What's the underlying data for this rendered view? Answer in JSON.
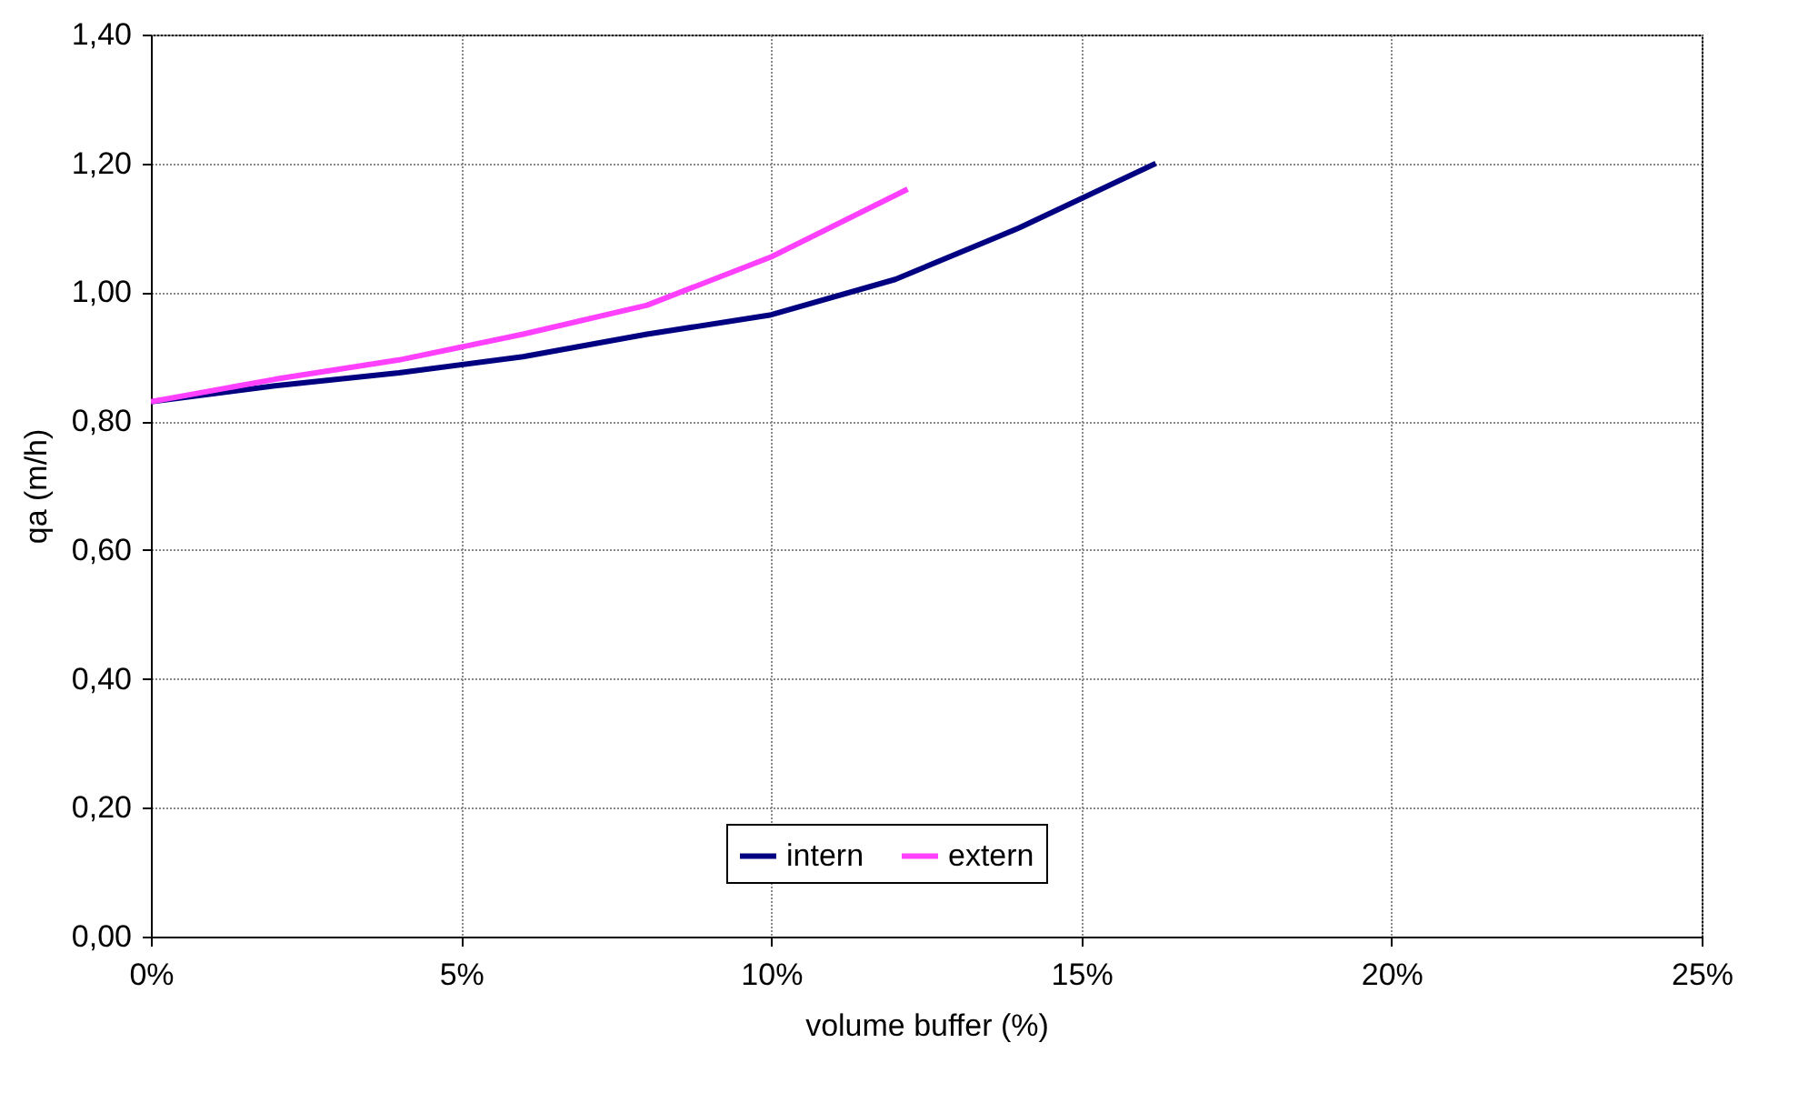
{
  "chart_data": {
    "type": "line",
    "xlabel": "volume buffer (%)",
    "ylabel": "qa (m/h)",
    "xlim": [
      0,
      25
    ],
    "xticks": [
      {
        "value": 0,
        "label": "0%"
      },
      {
        "value": 5,
        "label": "5%"
      },
      {
        "value": 10,
        "label": "10%"
      },
      {
        "value": 15,
        "label": "15%"
      },
      {
        "value": 20,
        "label": "20%"
      },
      {
        "value": 25,
        "label": "25%"
      }
    ],
    "ylim": [
      0,
      1.4
    ],
    "yticks": [
      {
        "value": 0,
        "label": "0,00"
      },
      {
        "value": 0.2,
        "label": "0,20"
      },
      {
        "value": 0.4,
        "label": "0,40"
      },
      {
        "value": 0.6,
        "label": "0,60"
      },
      {
        "value": 0.8,
        "label": "0,80"
      },
      {
        "value": 1,
        "label": "1,00"
      },
      {
        "value": 1.2,
        "label": "1,20"
      },
      {
        "value": 1.4,
        "label": "1,40"
      }
    ],
    "grid": true,
    "legend": "bottom",
    "marker": "none",
    "series": [
      {
        "name": "intern",
        "color": "#000080",
        "x": [
          0,
          2,
          4,
          6,
          8,
          10,
          12,
          14,
          16.2
        ],
        "values": [
          0.83,
          0.855,
          0.875,
          0.9,
          0.935,
          0.965,
          1.02,
          1.1,
          1.2
        ]
      },
      {
        "name": "extern",
        "color": "#ff40ff",
        "x": [
          0,
          2,
          4,
          6,
          8,
          10,
          12.2
        ],
        "values": [
          0.83,
          0.865,
          0.895,
          0.935,
          0.98,
          1.055,
          1.16
        ]
      }
    ]
  }
}
